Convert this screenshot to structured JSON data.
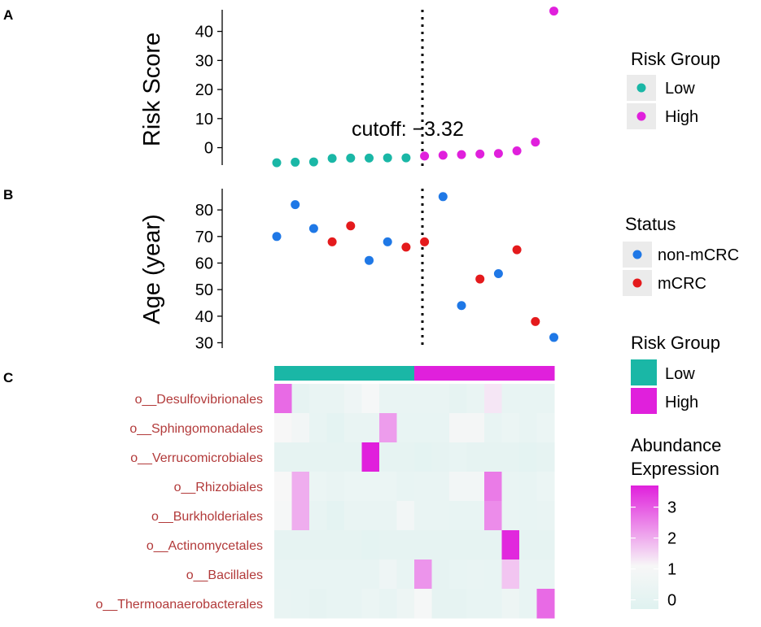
{
  "chart_data": [
    {
      "panel": "A",
      "type": "scatter",
      "ylabel": "Risk Score",
      "ylim": [
        -6,
        48
      ],
      "yticks": [
        0,
        10,
        20,
        30,
        40
      ],
      "x": [
        1,
        2,
        3,
        4,
        5,
        6,
        7,
        8,
        9,
        10,
        11,
        12,
        13,
        14,
        15,
        16
      ],
      "values": [
        -5.2,
        -5.0,
        -4.9,
        -3.7,
        -3.6,
        -3.6,
        -3.5,
        -3.5,
        -2.9,
        -2.6,
        -2.4,
        -2.2,
        -2.0,
        -1.1,
        1.9,
        47.0
      ],
      "groups": [
        "Low",
        "Low",
        "Low",
        "Low",
        "Low",
        "Low",
        "Low",
        "Low",
        "High",
        "High",
        "High",
        "High",
        "High",
        "High",
        "High",
        "High"
      ],
      "cutoff_label": "cutoff: −3.32",
      "cutoff_x": 8.5,
      "legend": {
        "title": "Risk Group",
        "entries": [
          "Low",
          "High"
        ]
      }
    },
    {
      "panel": "B",
      "type": "scatter",
      "ylabel": "Age (year)",
      "ylim": [
        28,
        88
      ],
      "yticks": [
        30,
        40,
        50,
        60,
        70,
        80
      ],
      "x": [
        1,
        2,
        3,
        4,
        5,
        6,
        7,
        8,
        9,
        10,
        11,
        12,
        13,
        14,
        15,
        16
      ],
      "values": [
        70,
        82,
        73,
        68,
        74,
        61,
        68,
        66,
        68,
        85,
        44,
        54,
        56,
        65,
        38,
        32
      ],
      "status": [
        "non-mCRC",
        "non-mCRC",
        "non-mCRC",
        "mCRC",
        "mCRC",
        "non-mCRC",
        "non-mCRC",
        "mCRC",
        "mCRC",
        "non-mCRC",
        "non-mCRC",
        "mCRC",
        "non-mCRC",
        "mCRC",
        "mCRC",
        "non-mCRC"
      ],
      "legend": {
        "title": "Status",
        "entries": [
          "non-mCRC",
          "mCRC"
        ]
      }
    },
    {
      "panel": "C",
      "type": "heatmap",
      "rows": [
        "o__Desulfovibrionales",
        "o__Sphingomonadales",
        "o__Verrucomicrobiales",
        "o__Rhizobiales",
        "o__Burkholderiales",
        "o__Actinomycetales",
        "o__Bacillales",
        "o__Thermoanaerobacterales"
      ],
      "annotation": [
        "Low",
        "Low",
        "Low",
        "Low",
        "Low",
        "Low",
        "Low",
        "Low",
        "High",
        "High",
        "High",
        "High",
        "High",
        "High",
        "High",
        "High"
      ],
      "values": [
        [
          2.8,
          0.1,
          0.3,
          0.3,
          0.6,
          1.0,
          0.3,
          0.3,
          0.3,
          0.3,
          0.1,
          0.3,
          1.3,
          0.2,
          0.2,
          0.2
        ],
        [
          1.1,
          0.8,
          0.2,
          0.0,
          0.3,
          0.3,
          2.2,
          0.2,
          0.2,
          0.2,
          0.9,
          0.9,
          0.2,
          0.4,
          0.2,
          0.4
        ],
        [
          0.1,
          0.1,
          0.1,
          0.1,
          0.1,
          3.7,
          0.1,
          0.1,
          0.0,
          0.1,
          0.2,
          0.1,
          0.1,
          0.1,
          0.0,
          0.1
        ],
        [
          1.1,
          2.0,
          0.4,
          0.3,
          0.4,
          0.4,
          0.4,
          0.2,
          0.3,
          0.3,
          0.8,
          0.8,
          2.6,
          0.3,
          0.2,
          0.4
        ],
        [
          1.0,
          2.0,
          0.2,
          0.0,
          0.3,
          0.3,
          0.3,
          0.8,
          0.3,
          0.3,
          0.2,
          0.2,
          2.4,
          0.3,
          0.2,
          0.3
        ],
        [
          0.1,
          0.1,
          0.1,
          0.1,
          0.1,
          0.0,
          0.1,
          0.1,
          0.1,
          0.1,
          0.1,
          0.1,
          0.1,
          3.6,
          0.1,
          0.1
        ],
        [
          0.2,
          0.2,
          0.2,
          0.2,
          0.2,
          0.2,
          0.6,
          0.2,
          2.3,
          0.1,
          0.2,
          0.3,
          0.2,
          1.7,
          0.2,
          0.2
        ],
        [
          0.3,
          0.2,
          0.1,
          0.2,
          0.2,
          0.4,
          0.2,
          0.5,
          1.0,
          0.1,
          0.1,
          0.2,
          0.2,
          0.5,
          0.2,
          2.8
        ]
      ],
      "legend": {
        "title_line1": "Risk Group",
        "entries": [
          "Low",
          "High"
        ],
        "scale_title_line1": "Abundance",
        "scale_title_line2": "Expression",
        "scale_ticks": [
          0,
          1,
          2,
          3
        ],
        "scale_range": [
          -0.3,
          3.7
        ]
      }
    }
  ],
  "panel_labels": [
    "A",
    "B",
    "C"
  ],
  "colors": {
    "low": "#1ab7a6",
    "high": "#e020dc",
    "non_mcrc": "#1f78e6",
    "mcrc": "#e41a1c",
    "label_text": "#b23a3a",
    "heat_low": "#dff2f0",
    "heat_mid": "#f7f7f7",
    "heat_high": "#e020dc",
    "legend_key_bg": "#ebebeb"
  }
}
